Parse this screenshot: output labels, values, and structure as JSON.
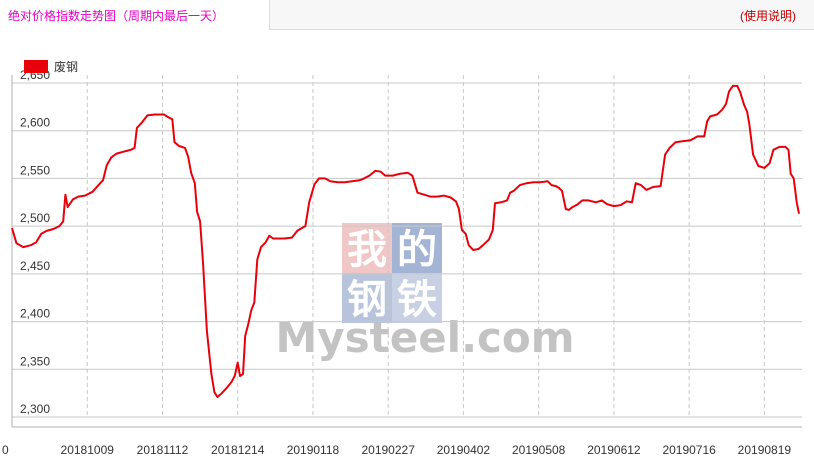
{
  "header": {
    "title": "绝对价格指数走势图（周期内最后一天）",
    "help_label": "(使用说明)"
  },
  "watermark": {
    "chars": [
      "我",
      "的",
      "钢",
      "铁"
    ],
    "brand": "Mysteel.com"
  },
  "colors": {
    "series": "#e8000b",
    "grid": "#c8c8c8",
    "title": "#e000c8",
    "help": "#c00000"
  },
  "chart_data": {
    "type": "line",
    "legend_position": "top-left",
    "grid": true,
    "ylim": [
      2300,
      2650
    ],
    "yticks": [
      2300,
      2350,
      2400,
      2450,
      2500,
      2550,
      2600,
      2650
    ],
    "ytick_labels": [
      "2,300",
      "2,350",
      "2,400",
      "2,450",
      "2,500",
      "2,550",
      "2,600",
      "2,650"
    ],
    "xlim": [
      0,
      105
    ],
    "xticks": [
      0,
      10,
      20,
      30,
      40,
      50,
      60,
      70,
      80,
      90,
      100
    ],
    "xtick_labels": [
      "0",
      "20181009",
      "20181112",
      "20181214",
      "20190118",
      "20190227",
      "20190402",
      "20190508",
      "20190612",
      "20190716",
      "20190819"
    ],
    "series": [
      {
        "name": "废钢",
        "color": "#e8000b",
        "points": [
          [
            0,
            2498
          ],
          [
            0.6,
            2482
          ],
          [
            1.5,
            2478
          ],
          [
            2.5,
            2480
          ],
          [
            3.2,
            2483
          ],
          [
            3.9,
            2492
          ],
          [
            4.6,
            2495
          ],
          [
            5.5,
            2497
          ],
          [
            6.3,
            2500
          ],
          [
            6.8,
            2505
          ],
          [
            7.1,
            2533
          ],
          [
            7.4,
            2520
          ],
          [
            8.1,
            2528
          ],
          [
            8.8,
            2531
          ],
          [
            9.7,
            2532
          ],
          [
            10.7,
            2536
          ],
          [
            11.6,
            2544
          ],
          [
            12.1,
            2548
          ],
          [
            12.6,
            2564
          ],
          [
            13.2,
            2572
          ],
          [
            13.9,
            2576
          ],
          [
            14.8,
            2578
          ],
          [
            15.8,
            2580
          ],
          [
            16.3,
            2582
          ],
          [
            16.6,
            2603
          ],
          [
            17.2,
            2608
          ],
          [
            18,
            2616
          ],
          [
            19,
            2617
          ],
          [
            20.2,
            2617
          ],
          [
            20.8,
            2614
          ],
          [
            21.3,
            2612
          ],
          [
            21.6,
            2588
          ],
          [
            22.2,
            2584
          ],
          [
            23,
            2582
          ],
          [
            23.4,
            2573
          ],
          [
            23.8,
            2556
          ],
          [
            24.3,
            2545
          ],
          [
            24.6,
            2515
          ],
          [
            25,
            2505
          ],
          [
            25.4,
            2460
          ],
          [
            25.9,
            2390
          ],
          [
            26.5,
            2345
          ],
          [
            26.9,
            2326
          ],
          [
            27.3,
            2321
          ],
          [
            27.9,
            2325
          ],
          [
            28.6,
            2331
          ],
          [
            29.2,
            2337
          ],
          [
            29.6,
            2343
          ],
          [
            30,
            2357
          ],
          [
            30.3,
            2343
          ],
          [
            30.7,
            2345
          ],
          [
            31,
            2385
          ],
          [
            31.4,
            2397
          ],
          [
            31.8,
            2412
          ],
          [
            32.2,
            2420
          ],
          [
            32.6,
            2465
          ],
          [
            33.1,
            2478
          ],
          [
            33.7,
            2483
          ],
          [
            34.2,
            2490
          ],
          [
            34.7,
            2487
          ],
          [
            35.4,
            2487
          ],
          [
            36.2,
            2487
          ],
          [
            37.2,
            2488
          ],
          [
            37.9,
            2495
          ],
          [
            38.5,
            2498
          ],
          [
            39,
            2500
          ],
          [
            39.5,
            2525
          ],
          [
            40.2,
            2544
          ],
          [
            40.8,
            2550
          ],
          [
            41.6,
            2550
          ],
          [
            42.3,
            2547
          ],
          [
            43.3,
            2546
          ],
          [
            44.2,
            2546
          ],
          [
            45.2,
            2547
          ],
          [
            46.2,
            2548
          ],
          [
            46.8,
            2550
          ],
          [
            47.5,
            2553
          ],
          [
            48.3,
            2558
          ],
          [
            49,
            2557
          ],
          [
            49.6,
            2553
          ],
          [
            50.6,
            2553
          ],
          [
            51.6,
            2555
          ],
          [
            52.6,
            2556
          ],
          [
            53.2,
            2553
          ],
          [
            53.9,
            2535
          ],
          [
            54.8,
            2533
          ],
          [
            55.6,
            2531
          ],
          [
            56.5,
            2531
          ],
          [
            57.4,
            2532
          ],
          [
            58.3,
            2530
          ],
          [
            59,
            2526
          ],
          [
            59.4,
            2518
          ],
          [
            59.8,
            2496
          ],
          [
            60.3,
            2492
          ],
          [
            60.7,
            2480
          ],
          [
            61.3,
            2475
          ],
          [
            62,
            2476
          ],
          [
            62.6,
            2480
          ],
          [
            63.4,
            2486
          ],
          [
            63.9,
            2496
          ],
          [
            64.2,
            2524
          ],
          [
            65,
            2525
          ],
          [
            65.8,
            2527
          ],
          [
            66.2,
            2535
          ],
          [
            66.7,
            2537
          ],
          [
            67.5,
            2543
          ],
          [
            68.4,
            2545
          ],
          [
            69.3,
            2546
          ],
          [
            70.2,
            2546
          ],
          [
            71.2,
            2547
          ],
          [
            71.7,
            2543
          ],
          [
            72.3,
            2542
          ],
          [
            72.7,
            2540
          ],
          [
            73.1,
            2537
          ],
          [
            73.6,
            2518
          ],
          [
            74,
            2517
          ],
          [
            74.5,
            2520
          ],
          [
            75.2,
            2523
          ],
          [
            75.8,
            2527
          ],
          [
            76.6,
            2527
          ],
          [
            77.6,
            2525
          ],
          [
            78.4,
            2527
          ],
          [
            79.1,
            2523
          ],
          [
            80,
            2521
          ],
          [
            80.9,
            2522
          ],
          [
            81.7,
            2526
          ],
          [
            82.4,
            2525
          ],
          [
            82.9,
            2545
          ],
          [
            83.6,
            2543
          ],
          [
            84.3,
            2538
          ],
          [
            85.2,
            2541
          ],
          [
            86.2,
            2542
          ],
          [
            86.8,
            2575
          ],
          [
            87.4,
            2582
          ],
          [
            88.2,
            2588
          ],
          [
            89.1,
            2589
          ],
          [
            90.2,
            2590
          ],
          [
            91.1,
            2594
          ],
          [
            92,
            2594
          ],
          [
            92.4,
            2610
          ],
          [
            92.8,
            2615
          ],
          [
            93.7,
            2617
          ],
          [
            94.4,
            2622
          ],
          [
            94.9,
            2628
          ],
          [
            95.3,
            2641
          ],
          [
            95.8,
            2647
          ],
          [
            96.4,
            2647
          ],
          [
            96.8,
            2640
          ],
          [
            97.3,
            2627
          ],
          [
            97.7,
            2620
          ],
          [
            98,
            2607
          ],
          [
            98.5,
            2575
          ],
          [
            99.2,
            2563
          ],
          [
            100,
            2561
          ],
          [
            100.7,
            2566
          ],
          [
            101.2,
            2580
          ],
          [
            102,
            2583
          ],
          [
            102.8,
            2583
          ],
          [
            103.2,
            2580
          ],
          [
            103.5,
            2555
          ],
          [
            103.9,
            2550
          ],
          [
            104.3,
            2525
          ],
          [
            104.6,
            2513
          ]
        ]
      }
    ]
  }
}
